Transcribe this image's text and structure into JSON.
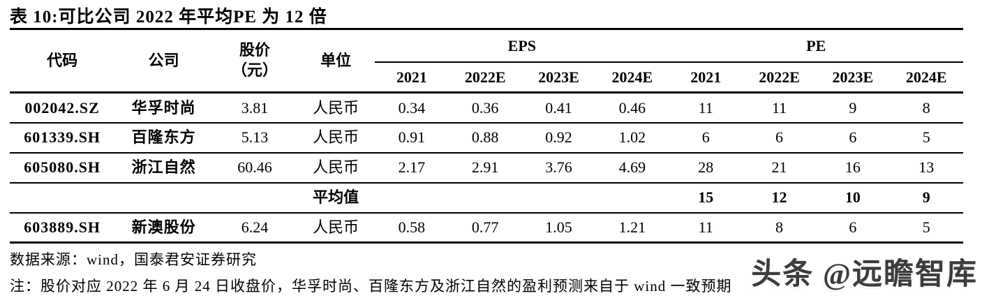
{
  "title": "表 10:可比公司 2022 年平均PE 为 12 倍",
  "table": {
    "header": {
      "code": "代码",
      "company": "公司",
      "price_line1": "股价",
      "price_line2": "（元）",
      "unit": "单位",
      "eps_group": "EPS",
      "pe_group": "PE",
      "years": [
        "2021",
        "2022E",
        "2023E",
        "2024E"
      ]
    },
    "rows": [
      {
        "code": "002042.SZ",
        "company": "华孚时尚",
        "price": "3.81",
        "unit": "人民币",
        "eps": [
          "0.34",
          "0.36",
          "0.41",
          "0.46"
        ],
        "pe": [
          "11",
          "11",
          "9",
          "8"
        ]
      },
      {
        "code": "601339.SH",
        "company": "百隆东方",
        "price": "5.13",
        "unit": "人民币",
        "eps": [
          "0.91",
          "0.88",
          "0.92",
          "1.02"
        ],
        "pe": [
          "6",
          "6",
          "6",
          "5"
        ]
      },
      {
        "code": "605080.SH",
        "company": "浙江自然",
        "price": "60.46",
        "unit": "人民币",
        "eps": [
          "2.17",
          "2.91",
          "3.76",
          "4.69"
        ],
        "pe": [
          "28",
          "21",
          "16",
          "13"
        ]
      },
      {
        "code": "",
        "company": "",
        "price": "",
        "unit": "平均值",
        "eps": [
          "",
          "",
          "",
          ""
        ],
        "pe": [
          "15",
          "12",
          "10",
          "9"
        ]
      },
      {
        "code": "603889.SH",
        "company": "新澳股份",
        "price": "6.24",
        "unit": "人民币",
        "eps": [
          "0.58",
          "0.77",
          "1.05",
          "1.21"
        ],
        "pe": [
          "11",
          "8",
          "6",
          "5"
        ]
      }
    ]
  },
  "source": "数据来源：wind，国泰君安证券研究",
  "note": "注：股价对应 2022 年 6 月 24 日收盘价，华孚时尚、百隆东方及浙江自然的盈利预测来自于 wind 一致预期",
  "watermark": "头条 @远瞻智库",
  "colors": {
    "text": "#000000",
    "watermark": "#3c3c3c",
    "rule": "#000000"
  }
}
